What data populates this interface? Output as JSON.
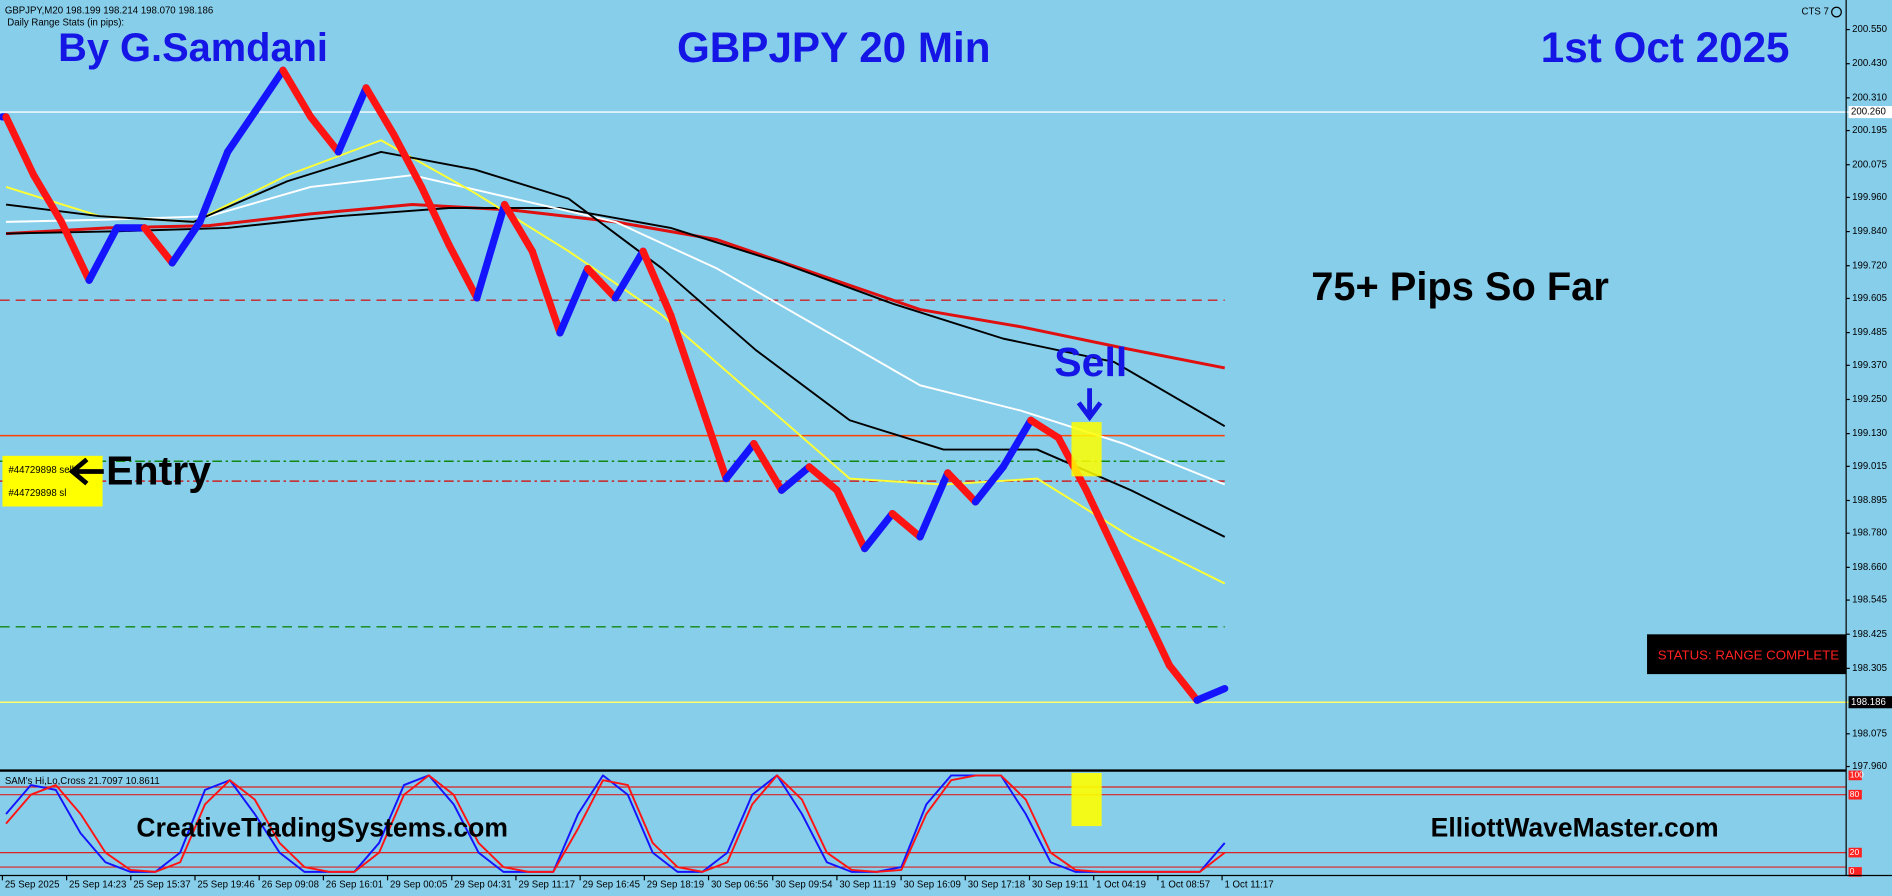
{
  "header": {
    "symbol_info": "GBPJPY,M20  198.199 198.214 198.070 198.186",
    "stats_title": "Daily Range Stats (in pips):",
    "corner": "CTS 7"
  },
  "overlay": {
    "author": "By G.Samdani",
    "entry": "Entry",
    "pips": "75+ Pips So Far",
    "sell": "Sell",
    "left_site": "CreativeTradingSystems.com",
    "right_site": "ElliottWaveMaster.com",
    "status": "STATUS: RANGE COMPLETE",
    "orders": [
      "#44729898 sell",
      "#44729898 sl"
    ]
  },
  "chart_data": {
    "type": "line",
    "title": "GBPJPY 20 Min",
    "subtitle": "1st Oct 2025",
    "xtick_labels": [
      "25 Sep 2025",
      "25 Sep 14:23",
      "25 Sep 15:37",
      "25 Sep 19:46",
      "26 Sep 09:08",
      "26 Sep 16:01",
      "29 Sep 00:05",
      "29 Sep 04:31",
      "29 Sep 11:17",
      "29 Sep 16:45",
      "29 Sep 18:19",
      "30 Sep 06:56",
      "30 Sep 09:54",
      "30 Sep 11:19",
      "30 Sep 16:09",
      "30 Sep 17:18",
      "30 Sep 19:11",
      "1 Oct 04:19",
      "1 Oct 08:57",
      "1 Oct 11:17"
    ],
    "ylim": [
      197.95,
      200.62
    ],
    "yticks": [
      {
        "value": 200.55,
        "label": "200.550"
      },
      {
        "value": 200.43,
        "label": "200.430"
      },
      {
        "value": 200.31,
        "label": "200.310"
      },
      {
        "value": 200.195,
        "label": "200.195"
      },
      {
        "value": 200.075,
        "label": "200.075"
      },
      {
        "value": 199.96,
        "label": "199.960"
      },
      {
        "value": 199.84,
        "label": "199.840"
      },
      {
        "value": 199.72,
        "label": "199.720"
      },
      {
        "value": 199.605,
        "label": "199.605"
      },
      {
        "value": 199.485,
        "label": "199.485"
      },
      {
        "value": 199.37,
        "label": "199.370"
      },
      {
        "value": 199.25,
        "label": "199.250"
      },
      {
        "value": 199.13,
        "label": "199.130"
      },
      {
        "value": 199.015,
        "label": "199.015"
      },
      {
        "value": 198.895,
        "label": "198.895"
      },
      {
        "value": 198.78,
        "label": "198.780"
      },
      {
        "value": 198.66,
        "label": "198.660"
      },
      {
        "value": 198.545,
        "label": "198.545"
      },
      {
        "value": 198.425,
        "label": "198.425"
      },
      {
        "value": 198.305,
        "label": "198.305"
      },
      {
        "value": 198.075,
        "label": "198.075"
      },
      {
        "value": 197.96,
        "label": "197.960"
      }
    ],
    "price": {
      "color_up": "#1414ff",
      "color_down": "#ff1414",
      "values": [
        200.243,
        200.038,
        199.874,
        199.669,
        199.853,
        199.853,
        199.73,
        199.874,
        200.12,
        200.263,
        200.407,
        200.243,
        200.12,
        200.345,
        200.181,
        199.997,
        199.792,
        199.607,
        199.935,
        199.771,
        199.484,
        199.71,
        199.607,
        199.771,
        199.546,
        199.259,
        198.972,
        199.095,
        198.931,
        199.013,
        198.931,
        198.726,
        198.849,
        198.767,
        198.992,
        198.89,
        199.013,
        199.177,
        199.115,
        198.931,
        198.726,
        198.521,
        198.316,
        198.193,
        198.234
      ]
    },
    "series": [
      {
        "color": "#e01010",
        "values": [
          199.833,
          199.853,
          199.861,
          199.902,
          199.935,
          199.915,
          199.874,
          199.812,
          199.689,
          199.566,
          199.505,
          199.431,
          199.361
        ]
      },
      {
        "color": "#000000",
        "values": [
          199.833,
          199.841,
          199.853,
          199.894,
          199.923,
          199.923,
          199.853,
          199.73,
          199.587,
          199.464,
          199.382,
          199.156
        ]
      },
      {
        "color": "#ffffff",
        "values": [
          199.874,
          199.882,
          199.894,
          199.997,
          200.038,
          199.956,
          199.874,
          199.71,
          199.505,
          199.3,
          199.21,
          199.095,
          198.951
        ]
      },
      {
        "color": "#ffff33",
        "values": [
          199.997,
          199.894,
          199.874,
          200.038,
          200.161,
          199.976,
          199.771,
          199.546,
          199.259,
          198.972,
          198.951,
          198.972,
          198.767,
          198.603
        ]
      },
      {
        "color": "#000000",
        "values": [
          199.935,
          199.894,
          199.874,
          200.017,
          200.12,
          200.058,
          199.956,
          199.71,
          199.423,
          199.177,
          199.074,
          199.074,
          198.931,
          198.767
        ]
      }
    ],
    "levels": [
      {
        "value": 200.26,
        "label": "200.260",
        "color": "#ffffff",
        "style": "solid"
      },
      {
        "value": 199.599,
        "color": "#cc2222",
        "style": "dash"
      },
      {
        "value": 199.123,
        "color": "#ff4400",
        "style": "solid"
      },
      {
        "value": 199.033,
        "color": "#118811",
        "style": "dashdot"
      },
      {
        "value": 198.963,
        "color": "#cc2222",
        "style": "dashdot"
      },
      {
        "value": 198.451,
        "color": "#118811",
        "style": "dash"
      },
      {
        "value": 198.186,
        "label": "198.186",
        "color": "#ffff66",
        "style": "solid"
      }
    ],
    "oscillator": {
      "title": "SAM's Hi,Lo,Cross 21.7097 10.8611",
      "ylim": [
        0,
        100
      ],
      "yticks": [
        100,
        80,
        20,
        0
      ],
      "levels": [
        88,
        80,
        20,
        5
      ],
      "series": [
        {
          "color": "#1414ff",
          "values": [
            60,
            90,
            85,
            40,
            10,
            0,
            0,
            20,
            85,
            95,
            60,
            20,
            0,
            0,
            0,
            30,
            90,
            100,
            70,
            20,
            0,
            0,
            0,
            60,
            100,
            80,
            20,
            0,
            0,
            20,
            80,
            100,
            60,
            10,
            0,
            0,
            5,
            70,
            100,
            100,
            100,
            60,
            10,
            0,
            0,
            0,
            0,
            0,
            0,
            30
          ]
        },
        {
          "color": "#ff1414",
          "values": [
            50,
            80,
            90,
            60,
            20,
            2,
            0,
            10,
            70,
            95,
            75,
            30,
            5,
            0,
            0,
            20,
            80,
            100,
            80,
            30,
            5,
            0,
            0,
            45,
            95,
            90,
            30,
            5,
            0,
            10,
            70,
            100,
            75,
            20,
            2,
            0,
            2,
            60,
            95,
            100,
            100,
            75,
            20,
            2,
            0,
            0,
            0,
            0,
            0,
            20
          ]
        }
      ]
    }
  }
}
